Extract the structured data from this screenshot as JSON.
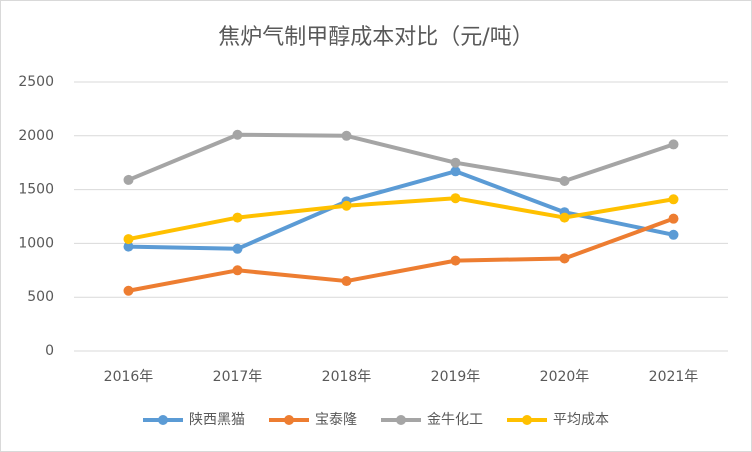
{
  "chart_data": {
    "type": "line",
    "title": "焦炉气制甲醇成本对比（元/吨）",
    "categories": [
      "2016年",
      "2017年",
      "2018年",
      "2019年",
      "2020年",
      "2021年"
    ],
    "series": [
      {
        "name": "陕西黑猫",
        "color": "#5b9bd5",
        "values": [
          970,
          950,
          1390,
          1670,
          1290,
          1080
        ]
      },
      {
        "name": "宝泰隆",
        "color": "#ed7d31",
        "values": [
          560,
          750,
          650,
          840,
          860,
          1230
        ]
      },
      {
        "name": "金牛化工",
        "color": "#a5a5a5",
        "values": [
          1590,
          2010,
          2000,
          1750,
          1580,
          1920
        ]
      },
      {
        "name": "平均成本",
        "color": "#ffc000",
        "values": [
          1040,
          1240,
          1350,
          1420,
          1240,
          1410
        ]
      }
    ],
    "ylim": [
      0,
      2500
    ],
    "yticks": [
      0,
      500,
      1000,
      1500,
      2000,
      2500
    ],
    "grid": true,
    "legend": "bottom"
  }
}
